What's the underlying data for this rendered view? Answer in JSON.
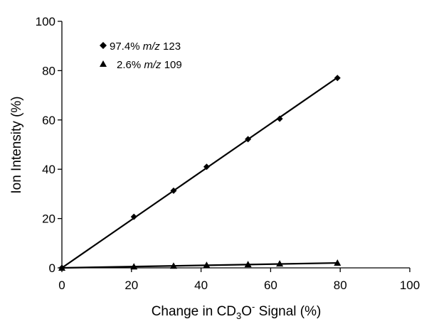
{
  "chart_data": {
    "type": "scatter",
    "xlabel": {
      "pre": "Change in CD",
      "sub": "3",
      "mid": "O",
      "sup": "-",
      "post": " Signal (%)"
    },
    "ylabel": "Ion Intensity (%)",
    "xlim": [
      0,
      100
    ],
    "ylim": [
      0,
      100
    ],
    "xticks": [
      0,
      20,
      40,
      60,
      80,
      100
    ],
    "yticks": [
      0,
      20,
      40,
      60,
      80,
      100
    ],
    "grid": false,
    "legend_position": "top-left",
    "series": [
      {
        "name": {
          "pct": "97.4% ",
          "mz": "m/z",
          "ion": " 123"
        },
        "marker": "diamond",
        "x": [
          0,
          20.7,
          32.1,
          41.6,
          53.5,
          62.6,
          79.2
        ],
        "y": [
          0,
          20.7,
          31.3,
          41.0,
          52.2,
          60.5,
          77.0
        ],
        "trendline": {
          "from": [
            0,
            0
          ],
          "to": [
            79.2,
            77.2
          ]
        }
      },
      {
        "name": {
          "pct": "2.6% ",
          "mz": "m/z",
          "ion": " 109"
        },
        "marker": "triangle",
        "x": [
          0,
          20.7,
          32.1,
          41.6,
          53.5,
          62.6,
          79.2
        ],
        "y": [
          0,
          0.5,
          0.8,
          1.1,
          1.4,
          1.7,
          2.0
        ],
        "trendline": {
          "from": [
            0,
            0
          ],
          "to": [
            79.2,
            2.0
          ]
        }
      }
    ],
    "colors": {
      "axis": "#000000",
      "marker": "#000000",
      "line": "#000000"
    }
  }
}
